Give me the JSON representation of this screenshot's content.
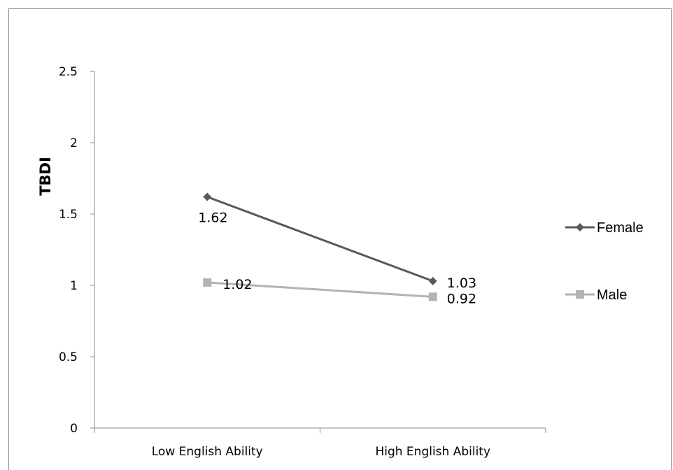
{
  "chart_data": {
    "type": "line",
    "categories": [
      "Low English Ability",
      "High English Ability"
    ],
    "series": [
      {
        "name": "Female",
        "values": [
          1.62,
          1.03
        ],
        "labels": [
          "1.62",
          "1.03"
        ],
        "color": "#595959",
        "marker": "diamond"
      },
      {
        "name": "Male",
        "values": [
          1.02,
          0.92
        ],
        "labels": [
          "1.02",
          "0.92"
        ],
        "color": "#b3b3b3",
        "marker": "square"
      }
    ],
    "ylabel": "TBDI",
    "xlabel": "",
    "ylim": [
      0,
      2.5
    ],
    "yticks": [
      "0",
      "0.5",
      "1",
      "1.5",
      "2",
      "2.5"
    ],
    "ytick_values": [
      0,
      0.5,
      1,
      1.5,
      2,
      2.5
    ],
    "grid": false,
    "legend_position": "right"
  }
}
